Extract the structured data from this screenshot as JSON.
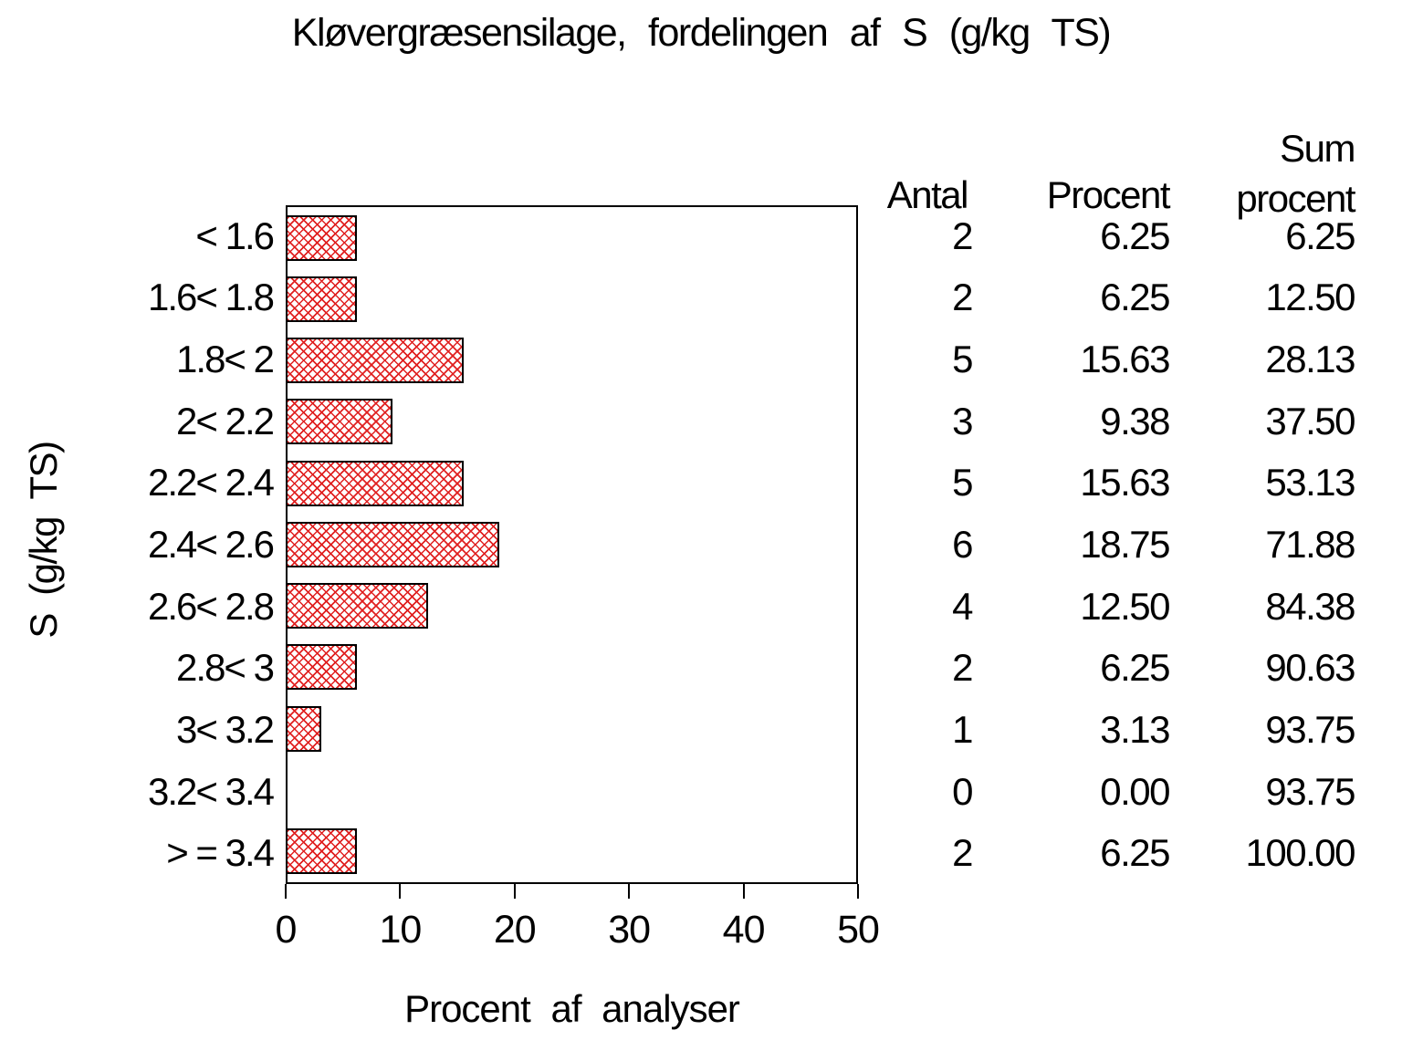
{
  "page": {
    "background": "#ffffff",
    "text_color": "#000000"
  },
  "chart_data": {
    "type": "bar",
    "orientation": "horizontal",
    "title": "Kløvergræsensilage, fordelingen af S (g/kg TS)",
    "xlabel": "Procent af analyser",
    "ylabel": "S (g/kg TS)",
    "categories": [
      "< 1.6",
      "1.6< 1.8",
      "1.8< 2",
      "2< 2.2",
      "2.2< 2.4",
      "2.4< 2.6",
      "2.6< 2.8",
      "2.8< 3",
      "3< 3.2",
      "3.2< 3.4",
      "> = 3.4"
    ],
    "values": [
      6.25,
      6.25,
      15.63,
      9.38,
      15.63,
      18.75,
      12.5,
      6.25,
      3.13,
      0,
      6.25
    ],
    "xlim": [
      0,
      50
    ],
    "x_ticks": [
      "0",
      "10",
      "20",
      "30",
      "40",
      "50"
    ],
    "grid": false,
    "legend": false,
    "bar_fill_style": "red-crosshatch-on-white-with-black-outline",
    "bar_hatch_color": "#e02020",
    "frame_color": "#000000",
    "table": {
      "headers": {
        "antal": "Antal",
        "procent": "Procent",
        "sum_line1": "Sum",
        "sum_line2": "procent"
      },
      "rows": [
        {
          "antal": "2",
          "procent": "6.25",
          "sum": "6.25"
        },
        {
          "antal": "2",
          "procent": "6.25",
          "sum": "12.50"
        },
        {
          "antal": "5",
          "procent": "15.63",
          "sum": "28.13"
        },
        {
          "antal": "3",
          "procent": "9.38",
          "sum": "37.50"
        },
        {
          "antal": "5",
          "procent": "15.63",
          "sum": "53.13"
        },
        {
          "antal": "6",
          "procent": "18.75",
          "sum": "71.88"
        },
        {
          "antal": "4",
          "procent": "12.50",
          "sum": "84.38"
        },
        {
          "antal": "2",
          "procent": "6.25",
          "sum": "90.63"
        },
        {
          "antal": "1",
          "procent": "3.13",
          "sum": "93.75"
        },
        {
          "antal": "0",
          "procent": "0.00",
          "sum": "93.75"
        },
        {
          "antal": "2",
          "procent": "6.25",
          "sum": "100.00"
        }
      ]
    }
  }
}
